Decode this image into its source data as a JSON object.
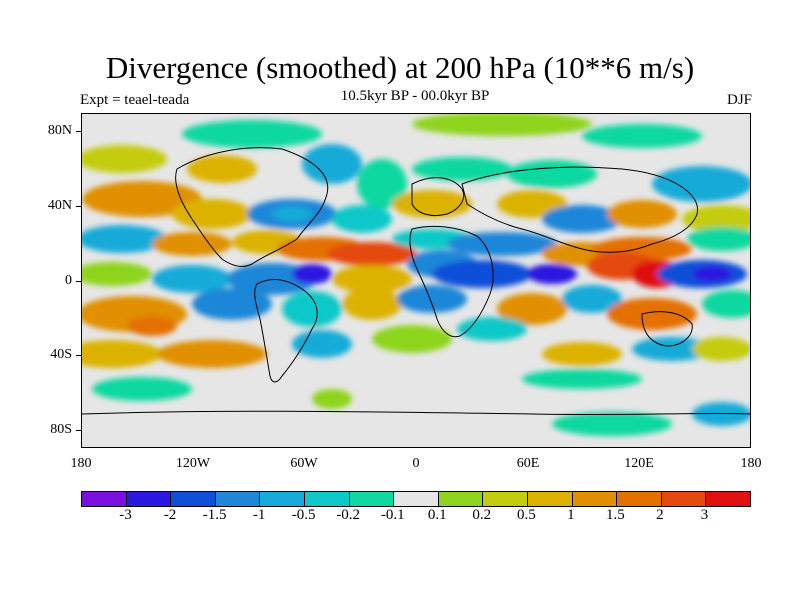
{
  "title": "Divergence (smoothed) at 200 hPa (10**6 m/s)",
  "subtitle": "10.5kyr BP - 00.0kyr BP",
  "experiment": "Expt = teael-teada",
  "season": "DJF",
  "map": {
    "lat_labels": [
      "80N",
      "40N",
      "0",
      "40S",
      "80S"
    ],
    "lon_labels": [
      "180",
      "120W",
      "60W",
      "0",
      "60E",
      "120E",
      "180"
    ]
  },
  "colorbar": {
    "colors": [
      "#7a10e0",
      "#2c18e0",
      "#1050d8",
      "#1f86d8",
      "#18aad8",
      "#10c8c8",
      "#10d8a0",
      "#e6e6e6",
      "#8ed41e",
      "#c4cc10",
      "#dcb200",
      "#e09000",
      "#e47000",
      "#e44a10",
      "#e01010"
    ],
    "labels": [
      "-3",
      "-2",
      "-1.5",
      "-1",
      "-0.5",
      "-0.2",
      "-0.1",
      "0.1",
      "0.2",
      "0.5",
      "1",
      "1.5",
      "2",
      "3"
    ]
  }
}
